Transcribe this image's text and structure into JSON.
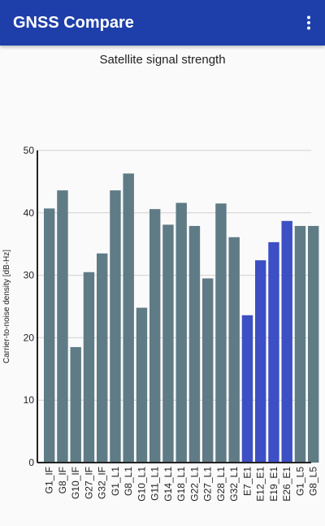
{
  "app": {
    "title": "GNSS Compare",
    "menu_icon": "more-vert-icon"
  },
  "colors": {
    "appbar": "#1e3fa9",
    "gps_bar": "#5f7b86",
    "galileo_bar": "#3c4fc4"
  },
  "chart_data": {
    "type": "bar",
    "title": "Satellite signal strength",
    "xlabel": "",
    "ylabel": "Carrier-to-noise density [dB-Hz]",
    "ylim": [
      0,
      50
    ],
    "yticks": [
      0,
      10,
      20,
      30,
      40,
      50
    ],
    "grid": true,
    "categories": [
      "G1_IF",
      "G8_IF",
      "G10_IF",
      "G27_IF",
      "G32_IF",
      "G1_L1",
      "G8_L1",
      "G10_L1",
      "G11_L1",
      "G14_L1",
      "G18_L1",
      "G22_L1",
      "G27_L1",
      "G28_L1",
      "G32_L1",
      "E7_E1",
      "E12_E1",
      "E19_E1",
      "E26_E1",
      "G1_L5",
      "G8_L5"
    ],
    "values": [
      40.7,
      43.6,
      18.5,
      30.5,
      33.5,
      43.6,
      46.3,
      24.8,
      40.6,
      38.1,
      41.6,
      37.9,
      29.5,
      41.5,
      36.1,
      23.6,
      32.4,
      35.3,
      38.7,
      37.9,
      37.9
    ],
    "constellation": [
      "GPS",
      "GPS",
      "GPS",
      "GPS",
      "GPS",
      "GPS",
      "GPS",
      "GPS",
      "GPS",
      "GPS",
      "GPS",
      "GPS",
      "GPS",
      "GPS",
      "GPS",
      "Galileo",
      "Galileo",
      "Galileo",
      "Galileo",
      "GPS",
      "GPS"
    ]
  }
}
